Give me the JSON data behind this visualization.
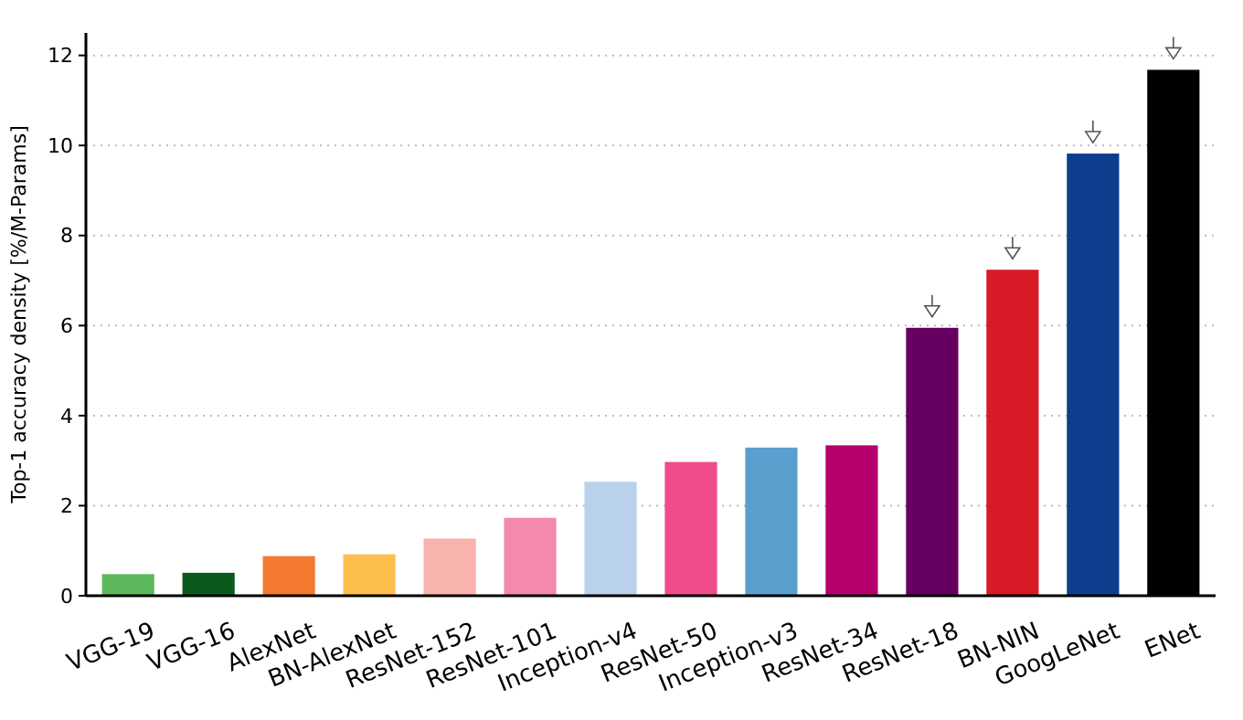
{
  "chart_data": {
    "type": "bar",
    "ylabel": "Top-1 accuracy density [%/M-Params]",
    "categories": [
      "VGG-19",
      "VGG-16",
      "AlexNet",
      "BN-AlexNet",
      "ResNet-152",
      "ResNet-101",
      "Inception-v4",
      "ResNet-50",
      "Inception-v3",
      "ResNet-34",
      "ResNet-18",
      "BN-NIN",
      "GoogLeNet",
      "ENet"
    ],
    "values": [
      0.48,
      0.51,
      0.88,
      0.92,
      1.27,
      1.73,
      2.53,
      2.97,
      3.29,
      3.34,
      5.95,
      7.24,
      9.82,
      11.68
    ],
    "colors": [
      "#5cb85c",
      "#0a5a1e",
      "#f47a30",
      "#fdbf4c",
      "#f8b3ad",
      "#f48aab",
      "#b9d1ea",
      "#ef4b8c",
      "#5aa0cf",
      "#b5006e",
      "#650060",
      "#d71a25",
      "#0d3d8c",
      "#000000"
    ],
    "ylim": [
      0,
      12.5
    ],
    "yticks": [
      0,
      2,
      4,
      6,
      8,
      10,
      12
    ],
    "grid": "y"
  }
}
